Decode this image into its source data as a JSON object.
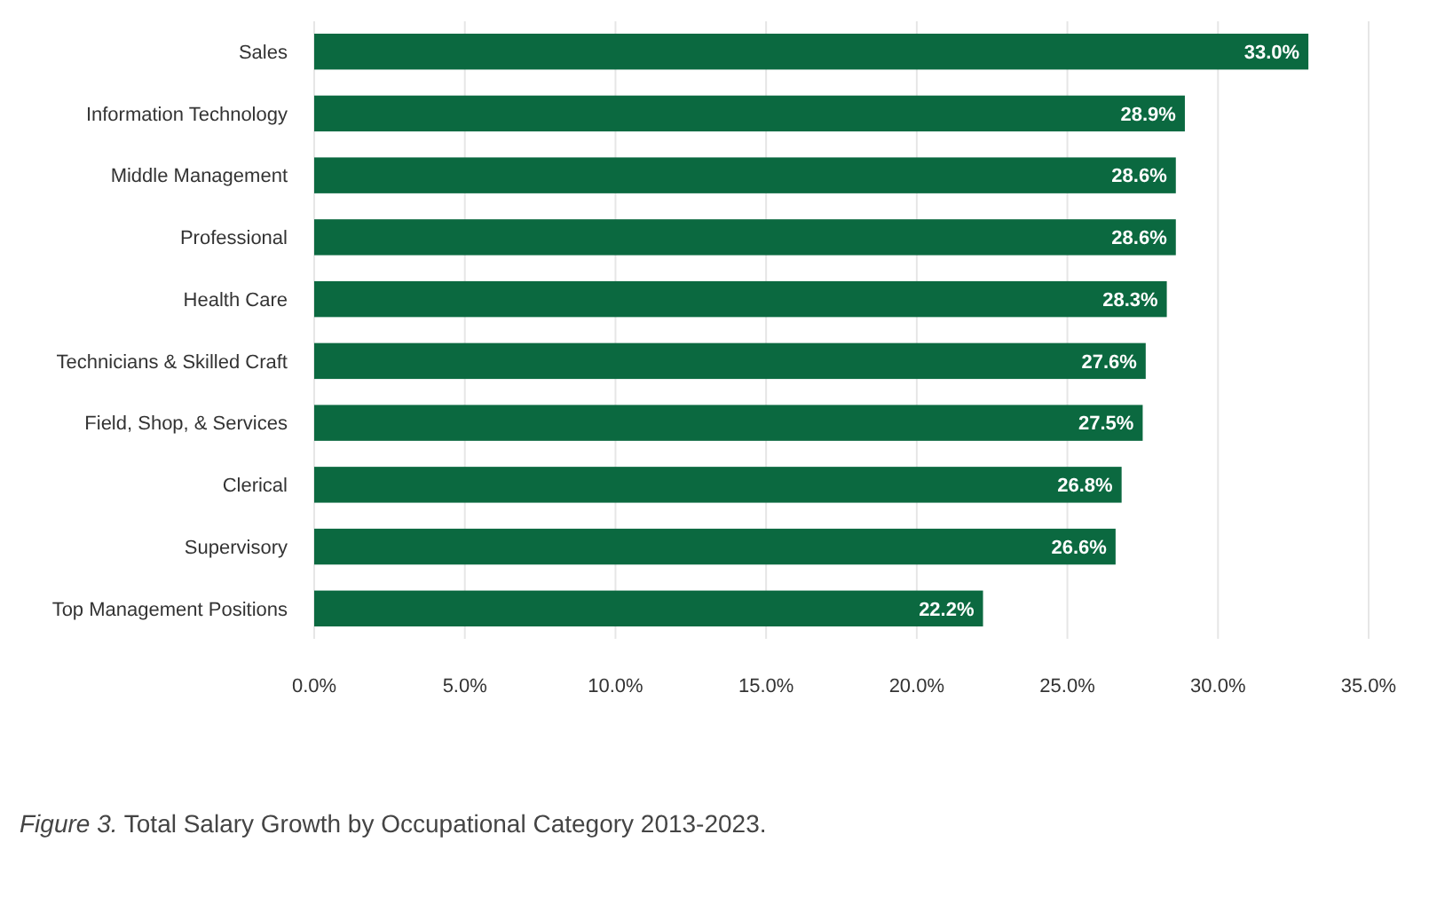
{
  "chart_data": {
    "type": "bar",
    "orientation": "horizontal",
    "categories": [
      "Sales",
      "Information Technology",
      "Middle Management",
      "Professional",
      "Health Care",
      "Technicians & Skilled Craft",
      "Field, Shop, & Services",
      "Clerical",
      "Supervisory",
      "Top Management Positions"
    ],
    "values": [
      33.0,
      28.9,
      28.6,
      28.6,
      28.3,
      27.6,
      27.5,
      26.8,
      26.6,
      22.2
    ],
    "value_labels": [
      "33.0%",
      "28.9%",
      "28.6%",
      "28.6%",
      "28.3%",
      "27.6%",
      "27.5%",
      "26.8%",
      "26.6%",
      "22.2%"
    ],
    "color": "#0b6940",
    "xlim": [
      0,
      35
    ],
    "xticks": [
      {
        "value": 0,
        "label": "0.0%"
      },
      {
        "value": 5,
        "label": "5.0%"
      },
      {
        "value": 10,
        "label": "10.0%"
      },
      {
        "value": 15,
        "label": "15.0%"
      },
      {
        "value": 20,
        "label": "20.0%"
      },
      {
        "value": 25,
        "label": "25.0%"
      },
      {
        "value": 30,
        "label": "30.0%"
      },
      {
        "value": 35,
        "label": "35.0%"
      }
    ],
    "grid": "x",
    "annotations": [
      "Figure 3. Total Salary Growth by Occupational Category 2013-2023."
    ]
  }
}
